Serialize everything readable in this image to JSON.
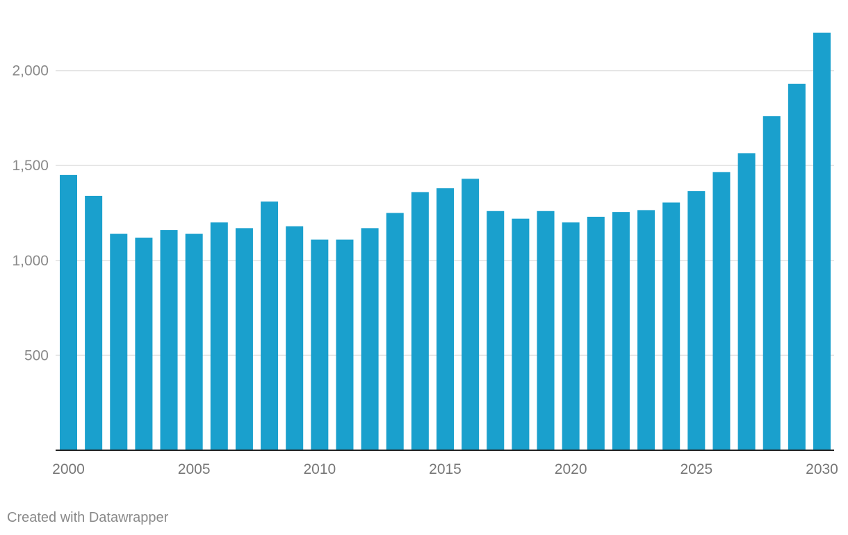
{
  "chart_data": {
    "type": "bar",
    "categories": [
      "2000",
      "2001",
      "2002",
      "2003",
      "2004",
      "2005",
      "2006",
      "2007",
      "2008",
      "2009",
      "2010",
      "2011",
      "2012",
      "2013",
      "2014",
      "2015",
      "2016",
      "2017",
      "2018",
      "2019",
      "2020",
      "2021",
      "2022",
      "2023",
      "2024",
      "2025",
      "2026",
      "2027",
      "2028",
      "2029",
      "2030"
    ],
    "values": [
      1450,
      1340,
      1140,
      1120,
      1160,
      1140,
      1200,
      1170,
      1310,
      1180,
      1110,
      1110,
      1170,
      1250,
      1360,
      1380,
      1430,
      1260,
      1220,
      1260,
      1200,
      1230,
      1255,
      1265,
      1305,
      1365,
      1465,
      1565,
      1760,
      1930,
      2200
    ],
    "x_tick_labels": [
      "2000",
      "2005",
      "2010",
      "2015",
      "2020",
      "2025",
      "2030"
    ],
    "y_ticks": [
      500,
      1000,
      1500,
      2000
    ],
    "y_tick_labels": [
      "500",
      "1,000",
      "1,500",
      "2,000"
    ],
    "ylim": [
      0,
      2200
    ],
    "grid": true,
    "legend": "none",
    "title": "",
    "xlabel": "",
    "ylabel": "",
    "colors": {
      "bar": "#1aa0cd",
      "grid": "#e3e3e3",
      "axis": "#222222",
      "tick_label": "#8a8a8a"
    }
  },
  "credit": "Created with Datawrapper"
}
